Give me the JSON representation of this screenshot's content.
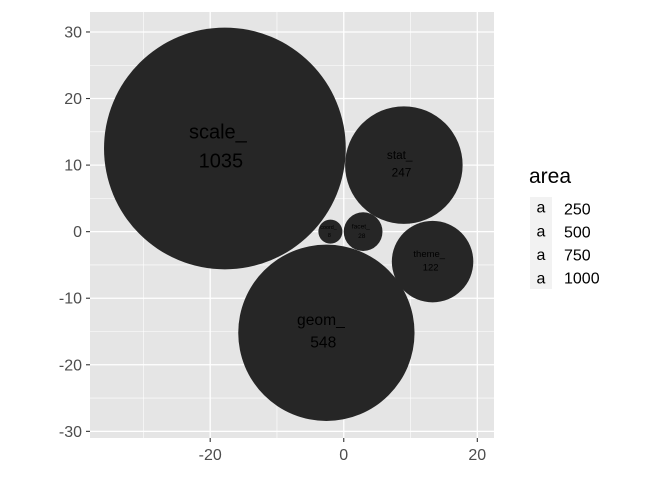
{
  "chart_data": {
    "type": "scatter",
    "subtype": "packed-bubble",
    "title": "",
    "xlabel": "",
    "ylabel": "",
    "xlim": [
      -38,
      22.5
    ],
    "ylim": [
      -31,
      33
    ],
    "x_ticks": [
      -20,
      0,
      20
    ],
    "x_tick_labels": [
      "-20",
      "0",
      "20"
    ],
    "y_ticks": [
      -30,
      -20,
      -10,
      0,
      10,
      20,
      30
    ],
    "y_tick_labels": [
      "-30",
      "-20",
      "-10",
      "0",
      "10",
      "20",
      "30"
    ],
    "grid": true,
    "panel_background": "#e5e5e5",
    "grid_color": "#ffffff",
    "bubble_fill": "#262626",
    "bubbles": [
      {
        "prefix": "scale_",
        "count": "1035",
        "x": -17.8,
        "y": 12.5,
        "radius": 18.1,
        "area": 1035
      },
      {
        "prefix": "geom_",
        "count": "548",
        "x": -2.6,
        "y": -15.2,
        "radius": 13.2,
        "area": 548
      },
      {
        "prefix": "stat_",
        "count": "247",
        "x": 9.0,
        "y": 10.0,
        "radius": 8.8,
        "area": 247
      },
      {
        "prefix": "theme_",
        "count": "122",
        "x": 13.3,
        "y": -4.5,
        "radius": 6.1,
        "area": 122
      },
      {
        "prefix": "facet_",
        "count": "28",
        "x": 2.9,
        "y": 0.0,
        "radius": 2.9,
        "area": 28
      },
      {
        "prefix": "coord_",
        "count": "8",
        "x": -2.0,
        "y": 0.0,
        "radius": 1.8,
        "area": 8
      }
    ],
    "legend": {
      "title": "area",
      "position": "right",
      "key_glyph": "a",
      "entries": [
        {
          "label": "250",
          "value": 250
        },
        {
          "label": "500",
          "value": 500
        },
        {
          "label": "750",
          "value": 750
        },
        {
          "label": "1000",
          "value": 1000
        }
      ]
    }
  }
}
